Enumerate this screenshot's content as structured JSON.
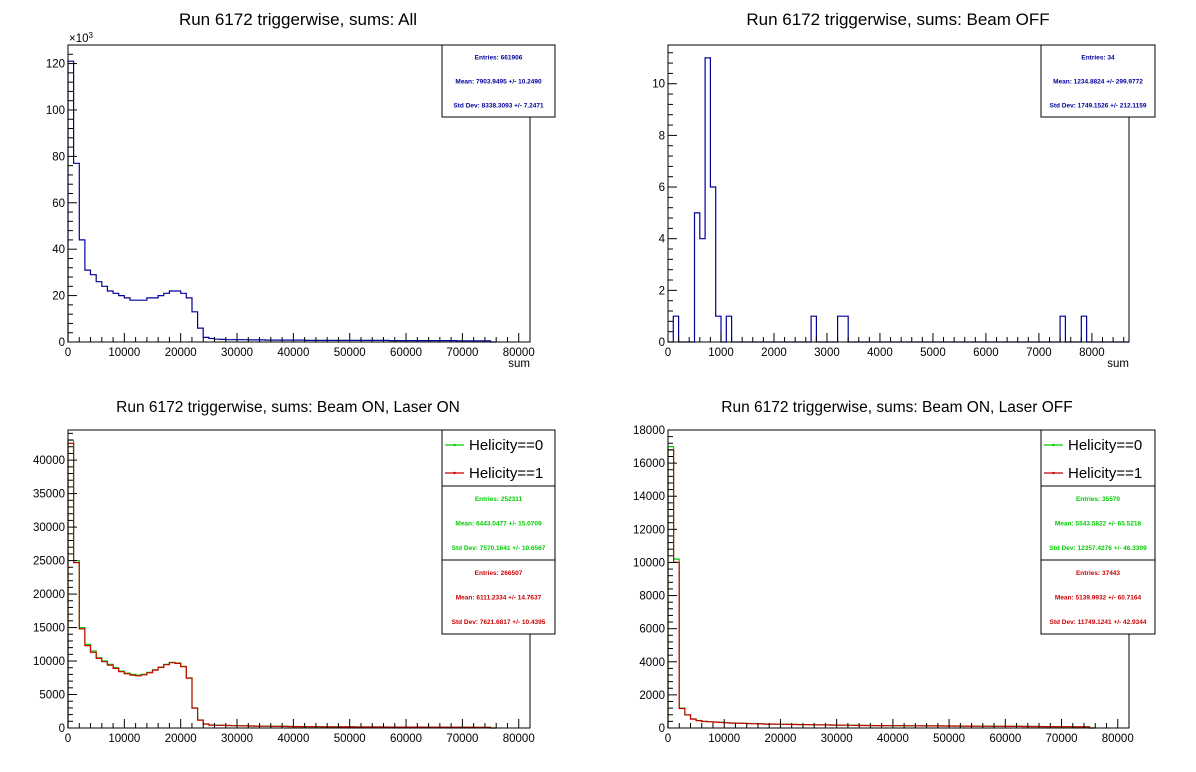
{
  "colors": {
    "all": "#000099",
    "h0": "#00cc00",
    "h1": "#cc0000",
    "axis": "#000000"
  },
  "chart_data": [
    {
      "type": "histogram",
      "title": "Run 6172 triggerwise, sums: All",
      "xlabel": "sum",
      "y_multiplier": "×10³",
      "xlim": [
        0,
        82000
      ],
      "ylim": [
        0,
        128
      ],
      "x_ticks": [
        0,
        10000,
        20000,
        30000,
        40000,
        50000,
        60000,
        70000,
        80000
      ],
      "x_tick_labels": [
        "0",
        "10000",
        "20000",
        "30000",
        "40000",
        "50000",
        "60000",
        "70000",
        "80000"
      ],
      "y_ticks": [
        0,
        20,
        40,
        60,
        80,
        100,
        120
      ],
      "y_tick_labels": [
        "0",
        "20",
        "40",
        "60",
        "80",
        "100",
        "120"
      ],
      "bin_width": 1000,
      "series": [
        {
          "color_key": "all",
          "values": [
            121,
            77,
            44,
            31,
            29,
            26,
            24,
            22,
            21,
            20,
            19,
            18,
            18,
            18,
            19,
            19,
            20,
            21,
            22,
            22,
            21,
            19,
            13,
            6,
            2,
            1.5,
            1.2,
            1.1,
            1,
            1,
            1,
            1,
            0.9,
            0.9,
            0.9,
            0.8,
            0.8,
            0.8,
            0.8,
            0.8,
            0.8,
            0.8,
            0.7,
            0.7,
            0.7,
            0.7,
            0.7,
            0.7,
            0.7,
            0.7,
            0.7,
            0.7,
            0.7,
            0.7,
            0.7,
            0.7,
            0.7,
            0.6,
            0.6,
            0.6,
            0.6,
            0.6,
            0.6,
            0.6,
            0.6,
            0.6,
            0.6,
            0.6,
            0.6,
            0.5,
            0.5,
            0.5,
            0.5,
            0.5,
            0.5,
            0
          ]
        }
      ],
      "stats": [
        {
          "color_key": "all",
          "lines": [
            "Entries: 661906",
            "Mean: 7903.9495 +/- 10.2490",
            "Std Dev: 8338.3093 +/- 7.2471"
          ]
        }
      ]
    },
    {
      "type": "histogram",
      "title": "Run 6172 triggerwise, sums: Beam OFF",
      "xlabel": "sum",
      "xlim": [
        0,
        8700
      ],
      "ylim": [
        0,
        11.5
      ],
      "x_ticks": [
        0,
        1000,
        2000,
        3000,
        4000,
        5000,
        6000,
        7000,
        8000
      ],
      "x_tick_labels": [
        "0",
        "1000",
        "2000",
        "3000",
        "4000",
        "5000",
        "6000",
        "7000",
        "8000"
      ],
      "y_ticks": [
        0,
        2,
        4,
        6,
        8,
        10
      ],
      "y_tick_labels": [
        "0",
        "2",
        "4",
        "6",
        "8",
        "10"
      ],
      "bin_width": 100,
      "series": [
        {
          "color_key": "all",
          "values": [
            0,
            1,
            0,
            0,
            0,
            5,
            4,
            11,
            6,
            1,
            0,
            1,
            0,
            0,
            0,
            0,
            0,
            0,
            0,
            0,
            0,
            0,
            0,
            0,
            0,
            0,
            0,
            1,
            0,
            0,
            0,
            0,
            1,
            1,
            0,
            0,
            0,
            0,
            0,
            0,
            0,
            0,
            0,
            0,
            0,
            0,
            0,
            0,
            0,
            0,
            0,
            0,
            0,
            0,
            0,
            0,
            0,
            0,
            0,
            0,
            0,
            0,
            0,
            0,
            0,
            0,
            0,
            0,
            0,
            0,
            0,
            0,
            0,
            0,
            1,
            0,
            0,
            0,
            1,
            0,
            0,
            0,
            0,
            0,
            0,
            0,
            0
          ]
        }
      ],
      "stats": [
        {
          "color_key": "all",
          "lines": [
            "Entries: 34",
            "Mean: 1234.8824 +/- 299.9772",
            "Std Dev: 1749.1526 +/- 212.1159"
          ]
        }
      ]
    },
    {
      "type": "histogram",
      "title": "Run 6172 triggerwise, sums: Beam ON, Laser ON",
      "xlabel": "",
      "xlim": [
        0,
        82000
      ],
      "ylim": [
        0,
        44500
      ],
      "x_ticks": [
        0,
        10000,
        20000,
        30000,
        40000,
        50000,
        60000,
        70000,
        80000
      ],
      "x_tick_labels": [
        "0",
        "10000",
        "20000",
        "30000",
        "40000",
        "50000",
        "60000",
        "70000",
        "80000"
      ],
      "y_ticks": [
        0,
        5000,
        10000,
        15000,
        20000,
        25000,
        30000,
        35000,
        40000
      ],
      "y_tick_labels": [
        "0",
        "5000",
        "10000",
        "15000",
        "20000",
        "25000",
        "30000",
        "35000",
        "40000"
      ],
      "bin_width": 1000,
      "legend": [
        {
          "label": "Helicity==0",
          "color_key": "h0"
        },
        {
          "label": "Helicity==1",
          "color_key": "h1"
        }
      ],
      "series": [
        {
          "name": "Helicity==0",
          "color_key": "h0",
          "values": [
            43000,
            25000,
            15000,
            12500,
            11500,
            10500,
            10000,
            9500,
            9000,
            8500,
            8200,
            8000,
            7900,
            8000,
            8300,
            8700,
            9100,
            9500,
            9800,
            9700,
            9200,
            7500,
            3000,
            1200,
            600,
            450,
            420,
            400,
            380,
            360,
            340,
            320,
            300,
            290,
            280,
            270,
            260,
            250,
            240,
            230,
            220,
            210,
            200,
            195,
            190,
            185,
            180,
            175,
            170,
            165,
            160,
            155,
            150,
            148,
            146,
            144,
            142,
            140,
            138,
            136,
            134,
            132,
            130,
            128,
            126,
            124,
            122,
            120,
            118,
            116,
            114,
            112,
            110,
            108,
            106,
            0
          ]
        },
        {
          "name": "Helicity==1",
          "color_key": "h1",
          "values": [
            42500,
            24700,
            14800,
            12300,
            11300,
            10400,
            9900,
            9400,
            8900,
            8400,
            8100,
            7900,
            7800,
            7950,
            8250,
            8650,
            9050,
            9450,
            9750,
            9650,
            9150,
            7450,
            2950,
            1180,
            590,
            440,
            410,
            390,
            370,
            350,
            330,
            310,
            295,
            285,
            275,
            265,
            255,
            245,
            235,
            225,
            215,
            205,
            198,
            193,
            188,
            183,
            178,
            173,
            168,
            163,
            158,
            153,
            148,
            146,
            144,
            142,
            140,
            138,
            136,
            134,
            132,
            130,
            128,
            126,
            124,
            122,
            120,
            118,
            116,
            114,
            112,
            110,
            108,
            106,
            104,
            0
          ]
        }
      ],
      "stats": [
        {
          "color_key": "h0",
          "lines": [
            "Entries: 252311",
            "Mean: 6443.0477 +/- 15.0709",
            "Std Dev: 7570.1641 +/- 10.6567"
          ]
        },
        {
          "color_key": "h1",
          "lines": [
            "Entries: 266507",
            "Mean: 6111.2334 +/- 14.7637",
            "Std Dev: 7621.6817 +/- 10.4395"
          ]
        }
      ]
    },
    {
      "type": "histogram",
      "title": "Run 6172 triggerwise, sums: Beam ON, Laser OFF",
      "xlabel": "",
      "xlim": [
        0,
        82000
      ],
      "ylim": [
        0,
        18000
      ],
      "x_ticks": [
        0,
        10000,
        20000,
        30000,
        40000,
        50000,
        60000,
        70000,
        80000
      ],
      "x_tick_labels": [
        "0",
        "10000",
        "20000",
        "30000",
        "40000",
        "50000",
        "60000",
        "70000",
        "80000"
      ],
      "y_ticks": [
        0,
        2000,
        4000,
        6000,
        8000,
        10000,
        12000,
        14000,
        16000,
        18000
      ],
      "y_tick_labels": [
        "0",
        "2000",
        "4000",
        "6000",
        "8000",
        "10000",
        "12000",
        "14000",
        "16000",
        "18000"
      ],
      "bin_width": 1000,
      "legend": [
        {
          "label": "Helicity==0",
          "color_key": "h0"
        },
        {
          "label": "Helicity==1",
          "color_key": "h1"
        }
      ],
      "series": [
        {
          "name": "Helicity==0",
          "color_key": "h0",
          "values": [
            17000,
            10200,
            1200,
            800,
            550,
            450,
            400,
            380,
            360,
            340,
            320,
            300,
            290,
            280,
            270,
            260,
            250,
            240,
            235,
            230,
            225,
            220,
            215,
            210,
            205,
            200,
            195,
            190,
            185,
            180,
            175,
            170,
            165,
            160,
            155,
            150,
            148,
            146,
            144,
            142,
            140,
            138,
            136,
            134,
            132,
            130,
            128,
            126,
            124,
            122,
            120,
            118,
            116,
            114,
            112,
            110,
            108,
            106,
            104,
            102,
            100,
            98,
            96,
            94,
            92,
            90,
            88,
            86,
            84,
            82,
            80,
            78,
            76,
            74,
            72,
            0
          ]
        },
        {
          "name": "Helicity==1",
          "color_key": "h1",
          "values": [
            16800,
            10000,
            1180,
            790,
            540,
            445,
            395,
            375,
            355,
            335,
            315,
            298,
            288,
            278,
            268,
            258,
            248,
            238,
            233,
            228,
            223,
            218,
            213,
            208,
            203,
            198,
            193,
            188,
            183,
            178,
            173,
            168,
            163,
            158,
            153,
            148,
            146,
            144,
            142,
            140,
            138,
            136,
            134,
            132,
            130,
            128,
            126,
            124,
            122,
            120,
            118,
            116,
            114,
            112,
            110,
            108,
            106,
            104,
            102,
            100,
            98,
            96,
            94,
            92,
            90,
            88,
            86,
            84,
            82,
            80,
            78,
            76,
            74,
            72,
            70,
            0
          ]
        }
      ],
      "stats": [
        {
          "color_key": "h0",
          "lines": [
            "Entries: 35570",
            "Mean: 5543.5822 +/- 65.5218",
            "Std Dev: 12357.4276 +/- 46.3309"
          ]
        },
        {
          "color_key": "h1",
          "lines": [
            "Entries: 37443",
            "Mean: 5139.9932 +/- 60.7164",
            "Std Dev: 11749.1241 +/- 42.9344"
          ]
        }
      ]
    }
  ]
}
